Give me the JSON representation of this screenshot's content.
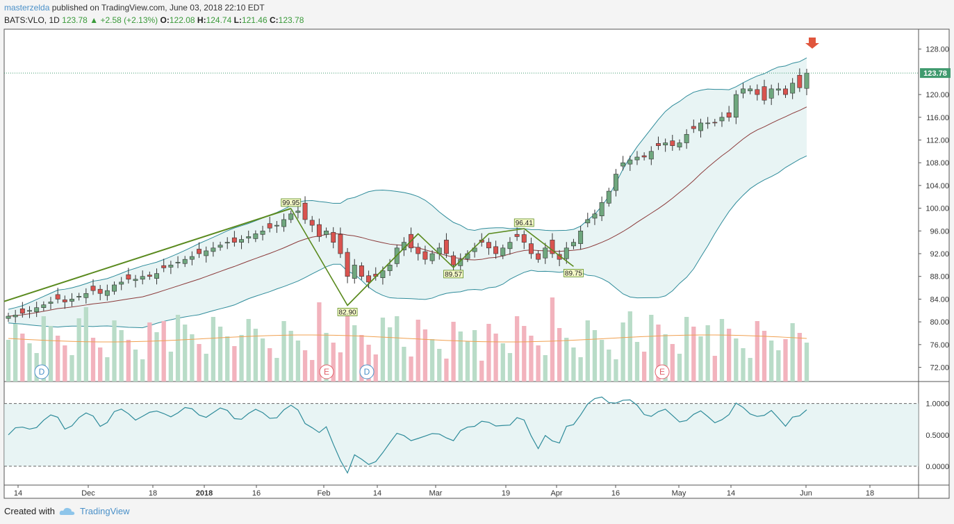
{
  "header": {
    "author": "masterzelda",
    "published": "published on TradingView.com, June 03, 2018 22:10 EDT",
    "symbol": "BATS:VLO, 1D",
    "last": "123.78",
    "change": "+2.58 (+2.13%)",
    "o_label": "O:",
    "o_value": "122.08",
    "h_label": "H:",
    "h_value": "124.74",
    "l_label": "L:",
    "l_value": "121.46",
    "c_label": "C:",
    "c_value": "123.78"
  },
  "footer": {
    "created_with": "Created with",
    "brand": "TradingView"
  },
  "colors": {
    "up": "#6fa77e",
    "down": "#d9534f",
    "bb": "#2e8b9a",
    "ma": "#8b3a3a",
    "pattern": "#5a8a1e",
    "vol_up": "#b9dcc8",
    "vol_down": "#f2b3bd",
    "price_tag": "#3f9a6e"
  },
  "chart_data": [
    {
      "type": "candlestick",
      "y_ticks": [
        "128.00",
        "120.00",
        "116.00",
        "112.00",
        "108.00",
        "104.00",
        "100.00",
        "96.00",
        "92.00",
        "88.00",
        "84.00",
        "80.00",
        "76.00",
        "72.00"
      ],
      "ylim": [
        69.5,
        131.5
      ],
      "x_ticks": [
        "14",
        "Dec",
        "18",
        "2018",
        "16",
        "Feb",
        "14",
        "Mar",
        "19",
        "Apr",
        "16",
        "May",
        "14",
        "Jun",
        "18"
      ],
      "last_price_label": "123.78",
      "close": [
        81,
        81.2,
        81.5,
        82,
        82.5,
        83,
        83.5,
        84,
        83.5,
        84,
        84.5,
        85,
        85.5,
        85,
        85.5,
        86.5,
        87,
        87.5,
        87.5,
        88,
        88,
        88.5,
        89.5,
        90,
        90.5,
        91,
        91.5,
        92,
        92.5,
        93,
        93.5,
        94,
        94,
        94.5,
        95,
        95.5,
        96,
        96.5,
        97,
        98,
        99,
        99.5,
        98,
        97,
        95,
        96,
        94,
        92,
        88,
        90,
        88,
        87,
        88,
        89,
        90,
        93,
        94,
        93,
        92,
        91,
        92,
        93,
        92,
        90,
        91,
        92,
        93,
        94,
        93,
        92,
        93,
        94,
        95,
        94,
        92,
        91,
        93,
        92,
        91,
        93,
        94,
        96,
        98,
        99,
        101,
        103,
        106,
        108,
        108.5,
        109,
        109,
        110,
        111,
        111.5,
        111,
        111.5,
        113,
        114,
        115,
        115,
        115,
        116,
        116,
        120,
        121,
        121,
        120,
        119,
        121,
        121,
        120,
        122,
        121.2,
        123.78
      ],
      "pattern_points": [
        {
          "label": "99.95",
          "value": 99.95
        },
        {
          "label": "82.90",
          "value": 82.9
        },
        {
          "label": "89.57",
          "value": 89.57
        },
        {
          "label": "96.41",
          "value": 96.41
        },
        {
          "label": "89.75",
          "value": 89.75
        }
      ],
      "event_markers": [
        "D",
        "E",
        "D",
        "E"
      ]
    },
    {
      "type": "line",
      "y_ticks": [
        "1.0000",
        "0.5000",
        "0.0000"
      ],
      "ylim": [
        -0.3,
        1.35
      ]
    }
  ]
}
